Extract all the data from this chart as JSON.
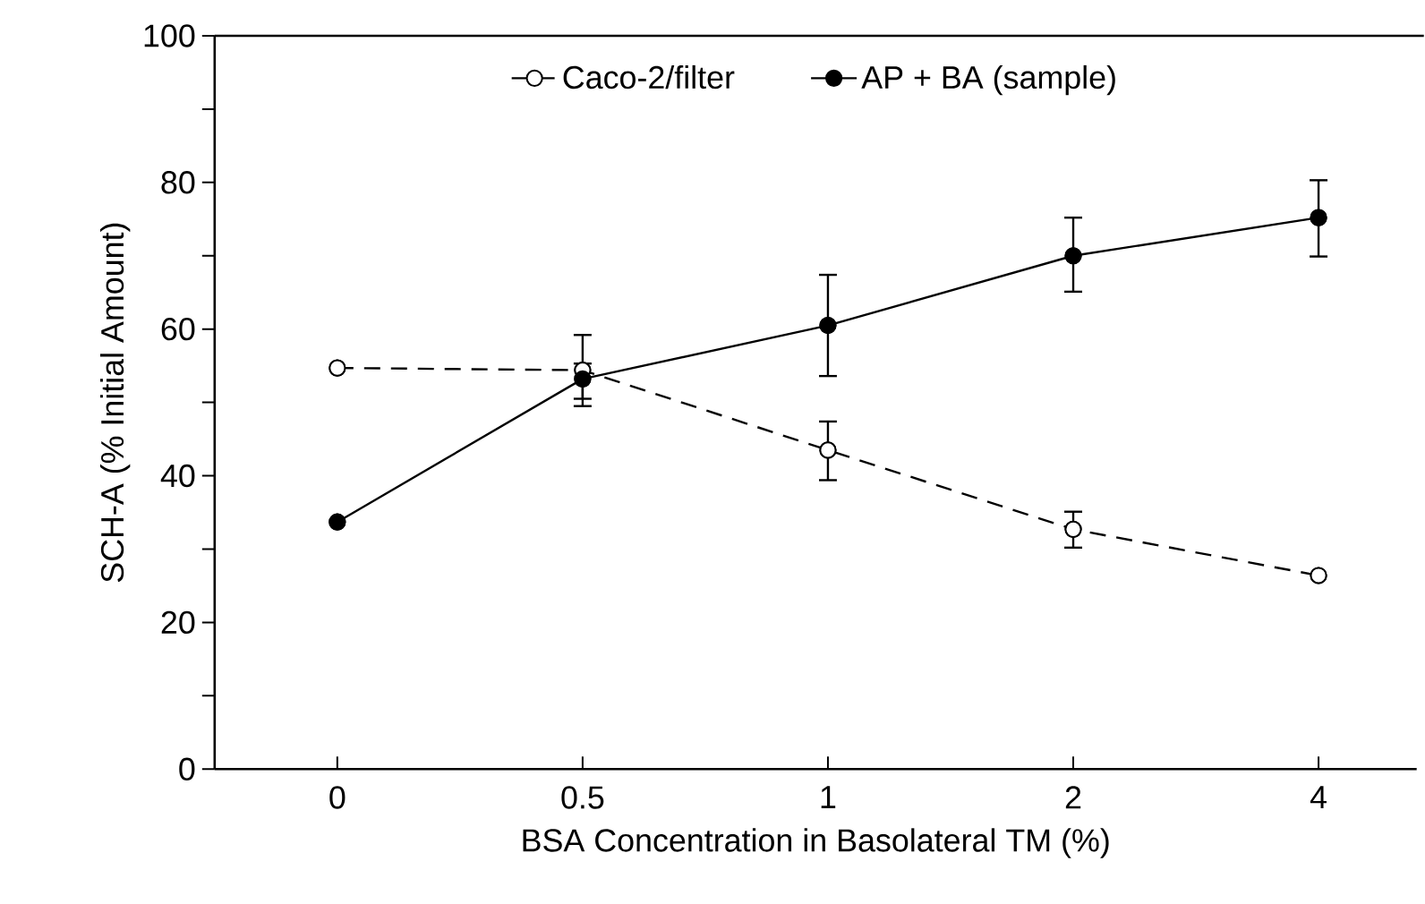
{
  "chart_data": {
    "type": "line",
    "xlabel": "BSA Concentration in Basolateral TM (%)",
    "ylabel": "SCH-A (% Initial Amount)",
    "categories": [
      "0",
      "0.5",
      "1",
      "2",
      "4"
    ],
    "series": [
      {
        "name": "Caco-2/filter",
        "color": "#000000",
        "line_style": "dashed",
        "marker": "circle",
        "values": [
          54.7,
          54.4,
          43.5,
          32.7,
          26.4
        ],
        "errors": [
          null,
          [
            50.5,
            55.3
          ],
          [
            39.4,
            47.4
          ],
          [
            30.2,
            35.1
          ],
          null
        ]
      },
      {
        "name": "AP + BA (sample)",
        "color": "#000000",
        "line_style": "solid",
        "marker": "circle",
        "values": [
          33.7,
          53.2,
          60.5,
          70.0,
          75.2
        ],
        "errors": [
          null,
          [
            49.5,
            59.2
          ],
          [
            53.6,
            67.4
          ],
          [
            65.1,
            75.2
          ],
          [
            69.9,
            80.3
          ]
        ]
      }
    ],
    "ylim": [
      0,
      100
    ],
    "yticks": [
      0,
      {
        "value": 10,
        "label": null
      },
      20,
      {
        "value": 30,
        "label": null
      },
      40,
      {
        "value": 50,
        "label": null
      },
      60,
      {
        "value": 70,
        "label": null
      },
      80,
      {
        "value": 90,
        "label": null
      },
      100
    ],
    "grid": false,
    "legend": "top"
  }
}
